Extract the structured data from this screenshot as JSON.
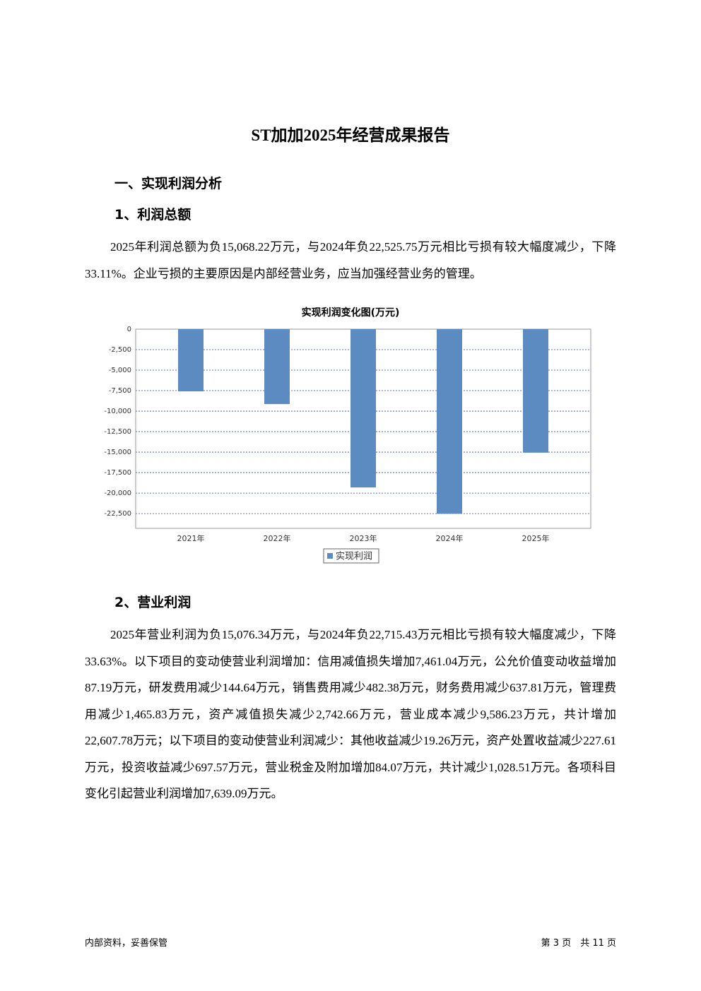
{
  "document": {
    "title": "ST加加2025年经营成果报告",
    "section": "一、实现利润分析",
    "subsections": [
      "1、利润总额",
      "2、营业利润"
    ],
    "paragraphs": [
      "2025年利润总额为负15,068.22万元，与2024年负22,525.75万元相比亏损有较大幅度减少，下降33.11%。企业亏损的主要原因是内部经营业务，应当加强经营业务的管理。",
      "2025年营业利润为负15,076.34万元，与2024年负22,715.43万元相比亏损有较大幅度减少，下降33.63%。以下项目的变动使营业利润增加：信用减值损失增加7,461.04万元，公允价值变动收益增加87.19万元，研发费用减少144.64万元，销售费用减少482.38万元，财务费用减少637.81万元，管理费用减少1,465.83万元，资产减值损失减少2,742.66万元，营业成本减少9,586.23万元，共计增加22,607.78万元；以下项目的变动使营业利润减少：其他收益减少19.26万元，资产处置收益减少227.61万元，投资收益减少697.57万元，营业税金及附加增加84.07万元，共计减少1,028.51万元。各项科目变化引起营业利润增加7,639.09万元。"
    ],
    "footer_left": "内部资料，妥善保管",
    "footer_right": "第 3 页　共 11 页"
  },
  "chart_data": {
    "type": "bar",
    "title": "实现利润变化图(万元)",
    "categories": [
      "2021年",
      "2022年",
      "2023年",
      "2024年",
      "2025年"
    ],
    "series": [
      {
        "name": "实现利润",
        "color": "#5b8bc0",
        "values": [
          -7590,
          -9140,
          -19310,
          -22525.75,
          -15068.22
        ]
      }
    ],
    "ylim": [
      -24300,
      0
    ],
    "yticks": [
      0,
      {
        "value": -2500,
        "label": "-2,500"
      },
      {
        "value": -5000,
        "label": "-5,000"
      },
      {
        "value": -7500,
        "label": "-7,500"
      },
      {
        "value": -10000,
        "label": "-10,000"
      },
      {
        "value": -12500,
        "label": "-12,500"
      },
      {
        "value": -15000,
        "label": "-15,000"
      },
      {
        "value": -17500,
        "label": "-17,500"
      },
      {
        "value": -20000,
        "label": "-20,000"
      },
      {
        "value": -22500,
        "label": "-22,500"
      }
    ],
    "grid": true,
    "legend": "bottom"
  }
}
